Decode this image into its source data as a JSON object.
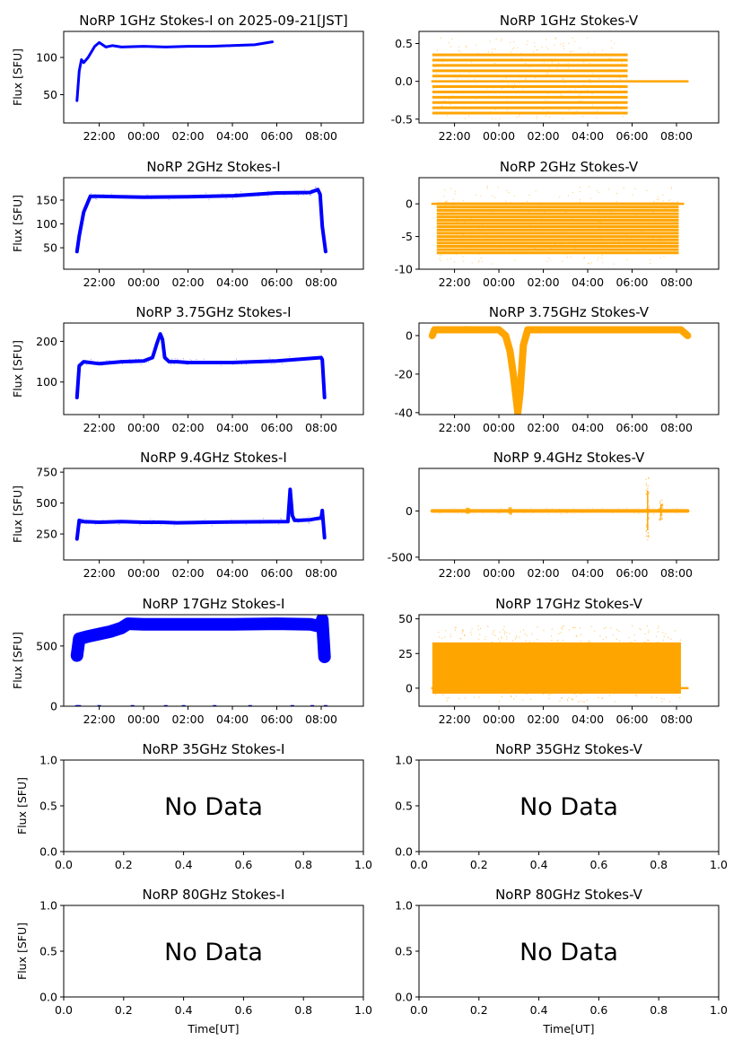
{
  "figure": {
    "colors": {
      "stokes_i": "#0000ff",
      "stokes_v": "#ffa500"
    },
    "ylabel": "Flux [SFU]",
    "xlabel": "Time[UT]",
    "no_data_text": "No Data",
    "time_ticks": [
      "22:00",
      "00:00",
      "02:00",
      "04:00",
      "06:00",
      "08:00"
    ],
    "unit_ticks": [
      "0.0",
      "0.2",
      "0.4",
      "0.6",
      "0.8",
      "1.0"
    ]
  },
  "chart_data": [
    {
      "id": "p1i",
      "type": "scatter",
      "title": "NoRP 1GHz Stokes-I on 2025-09-21[JST]",
      "ylabel": "Flux [SFU]",
      "xlabel": "",
      "xlim": [
        20.4,
        33.9
      ],
      "ylim": [
        12,
        135
      ],
      "yticks": [
        50,
        100
      ],
      "xticks": [
        22,
        24,
        26,
        28,
        30,
        32
      ],
      "xticklabels": [
        "22:00",
        "00:00",
        "02:00",
        "04:00",
        "06:00",
        "08:00"
      ],
      "color": "#0000ff",
      "band_width": 3,
      "series": [
        {
          "x": [
            21.0,
            21.1,
            21.2,
            21.3,
            21.5,
            21.8,
            22.0,
            22.3,
            22.6,
            23.0,
            24.0,
            25.0,
            26.0,
            27.0,
            28.0,
            29.0,
            29.8
          ],
          "values": [
            42,
            82,
            97,
            93,
            100,
            115,
            120,
            114,
            116,
            114,
            115,
            114,
            115,
            115,
            116,
            117,
            121
          ]
        }
      ]
    },
    {
      "id": "p1v",
      "type": "scatter",
      "title": "NoRP 1GHz Stokes-V",
      "ylabel": "",
      "xlabel": "",
      "xlim": [
        20.4,
        33.9
      ],
      "ylim": [
        -0.55,
        0.66
      ],
      "yticks": [
        -0.5,
        0.0,
        0.5
      ],
      "xticks": [
        22,
        24,
        26,
        28,
        30,
        32
      ],
      "xticklabels": [
        "22:00",
        "00:00",
        "02:00",
        "04:00",
        "06:00",
        "08:00"
      ],
      "color": "#ffa500",
      "quant": {
        "x0": 21.0,
        "x1": 29.8,
        "levels": [
          -0.42,
          -0.35,
          -0.28,
          -0.21,
          -0.14,
          -0.07,
          0.07,
          0.14,
          0.21,
          0.28,
          0.35
        ],
        "scatter": [
          -0.5,
          0.58
        ]
      },
      "series": [
        {
          "x": [
            21.0,
            29.8,
            29.9,
            32.5
          ],
          "values": [
            0.0,
            0.0,
            0.0,
            0.0
          ]
        }
      ]
    },
    {
      "id": "p2i",
      "type": "scatter",
      "title": "NoRP 2GHz Stokes-I",
      "ylabel": "Flux [SFU]",
      "xlabel": "",
      "xlim": [
        20.4,
        33.9
      ],
      "ylim": [
        5,
        197
      ],
      "yticks": [
        50,
        100,
        150
      ],
      "xticks": [
        22,
        24,
        26,
        28,
        30,
        32
      ],
      "xticklabels": [
        "22:00",
        "00:00",
        "02:00",
        "04:00",
        "06:00",
        "08:00"
      ],
      "color": "#0000ff",
      "band_width": 4,
      "series": [
        {
          "x": [
            21.0,
            21.1,
            21.3,
            21.6,
            22.0,
            24.0,
            26.0,
            28.0,
            30.0,
            31.5,
            31.85,
            31.95,
            32.05,
            32.2
          ],
          "values": [
            42,
            75,
            125,
            158,
            158,
            156,
            157,
            159,
            165,
            166,
            172,
            162,
            95,
            42
          ]
        }
      ]
    },
    {
      "id": "p2v",
      "type": "scatter",
      "title": "NoRP 2GHz Stokes-V",
      "ylabel": "",
      "xlabel": "",
      "xlim": [
        20.4,
        33.9
      ],
      "ylim": [
        -10,
        4
      ],
      "yticks": [
        -10,
        -5,
        0
      ],
      "xticks": [
        22,
        24,
        26,
        28,
        30,
        32
      ],
      "xticklabels": [
        "22:00",
        "00:00",
        "02:00",
        "04:00",
        "06:00",
        "08:00"
      ],
      "color": "#ffa500",
      "quant": {
        "x0": 21.2,
        "x1": 32.1,
        "levels": [
          -7.5,
          -7.0,
          -6.5,
          -6.0,
          -5.5,
          -5.0,
          -4.5,
          -4.0,
          -3.5,
          -3.0,
          -2.5,
          -2.0,
          -1.5,
          -1.0,
          -0.5,
          0.0
        ],
        "scatter": [
          -9.2,
          3.0
        ]
      },
      "series": [
        {
          "x": [
            21.0,
            32.3
          ],
          "values": [
            0,
            0
          ]
        }
      ]
    },
    {
      "id": "p3i",
      "type": "scatter",
      "title": "NoRP 3.75GHz Stokes-I",
      "ylabel": "Flux [SFU]",
      "xlabel": "",
      "xlim": [
        20.4,
        33.9
      ],
      "ylim": [
        20,
        245
      ],
      "yticks": [
        100,
        200
      ],
      "xticks": [
        22,
        24,
        26,
        28,
        30,
        32
      ],
      "xticklabels": [
        "22:00",
        "00:00",
        "02:00",
        "04:00",
        "06:00",
        "08:00"
      ],
      "color": "#0000ff",
      "band_width": 4,
      "series": [
        {
          "x": [
            21.0,
            21.1,
            21.3,
            22.0,
            23.0,
            24.0,
            24.4,
            24.6,
            24.75,
            24.85,
            24.95,
            25.15,
            25.5,
            26.0,
            28.0,
            30.0,
            32.0,
            32.05,
            32.15
          ],
          "values": [
            62,
            140,
            150,
            145,
            150,
            152,
            160,
            195,
            218,
            205,
            160,
            150,
            150,
            148,
            148,
            152,
            160,
            155,
            62
          ]
        }
      ]
    },
    {
      "id": "p3v",
      "type": "scatter",
      "title": "NoRP 3.75GHz Stokes-V",
      "ylabel": "",
      "xlabel": "",
      "xlim": [
        20.4,
        33.9
      ],
      "ylim": [
        -41,
        6.5
      ],
      "yticks": [
        -40,
        -20,
        0
      ],
      "xticks": [
        22,
        24,
        26,
        28,
        30,
        32
      ],
      "xticklabels": [
        "22:00",
        "00:00",
        "02:00",
        "04:00",
        "06:00",
        "08:00"
      ],
      "color": "#ffa500",
      "band_width": 8,
      "series": [
        {
          "x": [
            21.0,
            21.1,
            24.0,
            24.3,
            24.5,
            24.65,
            24.8,
            24.85,
            24.95,
            25.1,
            25.3,
            26.0,
            30.0,
            32.2,
            32.5
          ],
          "values": [
            0,
            3,
            3,
            0,
            -8,
            -20,
            -35,
            -40,
            -30,
            -5,
            3,
            3,
            3,
            3,
            0
          ]
        }
      ]
    },
    {
      "id": "p9i",
      "type": "scatter",
      "title": "NoRP 9.4GHz Stokes-I",
      "ylabel": "Flux [SFU]",
      "xlabel": "",
      "xlim": [
        20.4,
        33.9
      ],
      "ylim": [
        40,
        780
      ],
      "yticks": [
        250,
        500,
        750
      ],
      "xticks": [
        22,
        24,
        26,
        28,
        30,
        32
      ],
      "xticklabels": [
        "22:00",
        "00:00",
        "02:00",
        "04:00",
        "06:00",
        "08:00"
      ],
      "color": "#0000ff",
      "band_width": 4,
      "series": [
        {
          "x": [
            21.0,
            21.1,
            21.3,
            22.0,
            23.0,
            24.0,
            24.8,
            25.5,
            27.0,
            29.0,
            30.5,
            30.6,
            30.7,
            30.8,
            31.0,
            31.5,
            32.0,
            32.05,
            32.15
          ],
          "values": [
            210,
            360,
            350,
            345,
            350,
            345,
            345,
            340,
            345,
            348,
            350,
            610,
            400,
            360,
            360,
            365,
            380,
            440,
            220
          ]
        }
      ]
    },
    {
      "id": "p9v",
      "type": "scatter",
      "title": "NoRP 9.4GHz Stokes-V",
      "ylabel": "",
      "xlabel": "",
      "xlim": [
        20.4,
        33.9
      ],
      "ylim": [
        -530,
        460
      ],
      "yticks": [
        -500,
        0
      ],
      "xticks": [
        22,
        24,
        26,
        28,
        30,
        32
      ],
      "xticklabels": [
        "22:00",
        "00:00",
        "02:00",
        "04:00",
        "06:00",
        "08:00"
      ],
      "color": "#ffa500",
      "band_width": 4,
      "spikes": [
        {
          "x": 30.7,
          "top": 370,
          "bottom": -350
        },
        {
          "x": 31.3,
          "top": 120,
          "bottom": -100
        },
        {
          "x": 24.5,
          "top": 40,
          "bottom": -40
        },
        {
          "x": 22.6,
          "top": 30,
          "bottom": -30
        }
      ],
      "series": [
        {
          "x": [
            21.0,
            32.5
          ],
          "values": [
            0,
            0
          ]
        }
      ]
    },
    {
      "id": "p17i",
      "type": "scatter",
      "title": "NoRP 17GHz Stokes-I",
      "ylabel": "Flux [SFU]",
      "xlabel": "",
      "xlim": [
        20.4,
        33.9
      ],
      "ylim": [
        0,
        760
      ],
      "yticks": [
        0,
        500
      ],
      "xticks": [
        22,
        24,
        26,
        28,
        30,
        32
      ],
      "xticklabels": [
        "22:00",
        "00:00",
        "02:00",
        "04:00",
        "06:00",
        "08:00"
      ],
      "color": "#0000ff",
      "band_width": 14,
      "series": [
        {
          "x": [
            21.0,
            21.1,
            21.5,
            22.0,
            22.5,
            23.0,
            23.3,
            24.0,
            26.0,
            28.0,
            30.0,
            31.5,
            32.0,
            32.05,
            32.15
          ],
          "values": [
            420,
            560,
            580,
            600,
            620,
            650,
            685,
            680,
            680,
            680,
            685,
            680,
            660,
            720,
            410
          ]
        }
      ],
      "dropouts": [
        {
          "x": [
            21.0,
            21.1,
            22.0,
            23.5,
            25.0,
            25.8,
            27.2,
            28.8,
            30.7,
            31.6,
            32.2
          ],
          "values": [
            0,
            0,
            0,
            0,
            0,
            0,
            0,
            0,
            0,
            0,
            0
          ]
        }
      ]
    },
    {
      "id": "p17v",
      "type": "scatter",
      "title": "NoRP 17GHz Stokes-V",
      "ylabel": "",
      "xlabel": "",
      "xlim": [
        20.4,
        33.9
      ],
      "ylim": [
        -13,
        53
      ],
      "yticks": [
        0,
        25,
        50
      ],
      "xticks": [
        22,
        24,
        26,
        28,
        30,
        32
      ],
      "xticklabels": [
        "22:00",
        "00:00",
        "02:00",
        "04:00",
        "06:00",
        "08:00"
      ],
      "color": "#ffa500",
      "band": {
        "x0": 21.0,
        "x1": 32.2,
        "lo": -4,
        "hi": 33,
        "scatter": [
          -10,
          45
        ]
      },
      "series": [
        {
          "x": [
            21.0,
            32.5
          ],
          "values": [
            0,
            0
          ]
        }
      ]
    },
    {
      "id": "p35i",
      "type": "empty",
      "title": "NoRP 35GHz Stokes-I",
      "ylabel": "Flux [SFU]",
      "xlabel": "",
      "xlim": [
        0,
        1
      ],
      "ylim": [
        0,
        1
      ],
      "yticks": [
        0.0,
        0.5,
        1.0
      ],
      "xticks": [
        0,
        0.2,
        0.4,
        0.6,
        0.8,
        1.0
      ],
      "xticklabels": [
        "0.0",
        "0.2",
        "0.4",
        "0.6",
        "0.8",
        "1.0"
      ],
      "annotation": "No Data"
    },
    {
      "id": "p35v",
      "type": "empty",
      "title": "NoRP 35GHz Stokes-V",
      "ylabel": "",
      "xlabel": "",
      "xlim": [
        0,
        1
      ],
      "ylim": [
        0,
        1
      ],
      "yticks": [
        0.0,
        0.5,
        1.0
      ],
      "xticks": [
        0,
        0.2,
        0.4,
        0.6,
        0.8,
        1.0
      ],
      "xticklabels": [
        "0.0",
        "0.2",
        "0.4",
        "0.6",
        "0.8",
        "1.0"
      ],
      "annotation": "No Data"
    },
    {
      "id": "p80i",
      "type": "empty",
      "title": "NoRP 80GHz Stokes-I",
      "ylabel": "Flux [SFU]",
      "xlabel": "Time[UT]",
      "xlim": [
        0,
        1
      ],
      "ylim": [
        0,
        1
      ],
      "yticks": [
        0.0,
        0.5,
        1.0
      ],
      "xticks": [
        0,
        0.2,
        0.4,
        0.6,
        0.8,
        1.0
      ],
      "xticklabels": [
        "0.0",
        "0.2",
        "0.4",
        "0.6",
        "0.8",
        "1.0"
      ],
      "annotation": "No Data"
    },
    {
      "id": "p80v",
      "type": "empty",
      "title": "NoRP 80GHz Stokes-V",
      "ylabel": "",
      "xlabel": "Time[UT]",
      "xlim": [
        0,
        1
      ],
      "ylim": [
        0,
        1
      ],
      "yticks": [
        0.0,
        0.5,
        1.0
      ],
      "xticks": [
        0,
        0.2,
        0.4,
        0.6,
        0.8,
        1.0
      ],
      "xticklabels": [
        "0.0",
        "0.2",
        "0.4",
        "0.6",
        "0.8",
        "1.0"
      ],
      "annotation": "No Data"
    }
  ]
}
